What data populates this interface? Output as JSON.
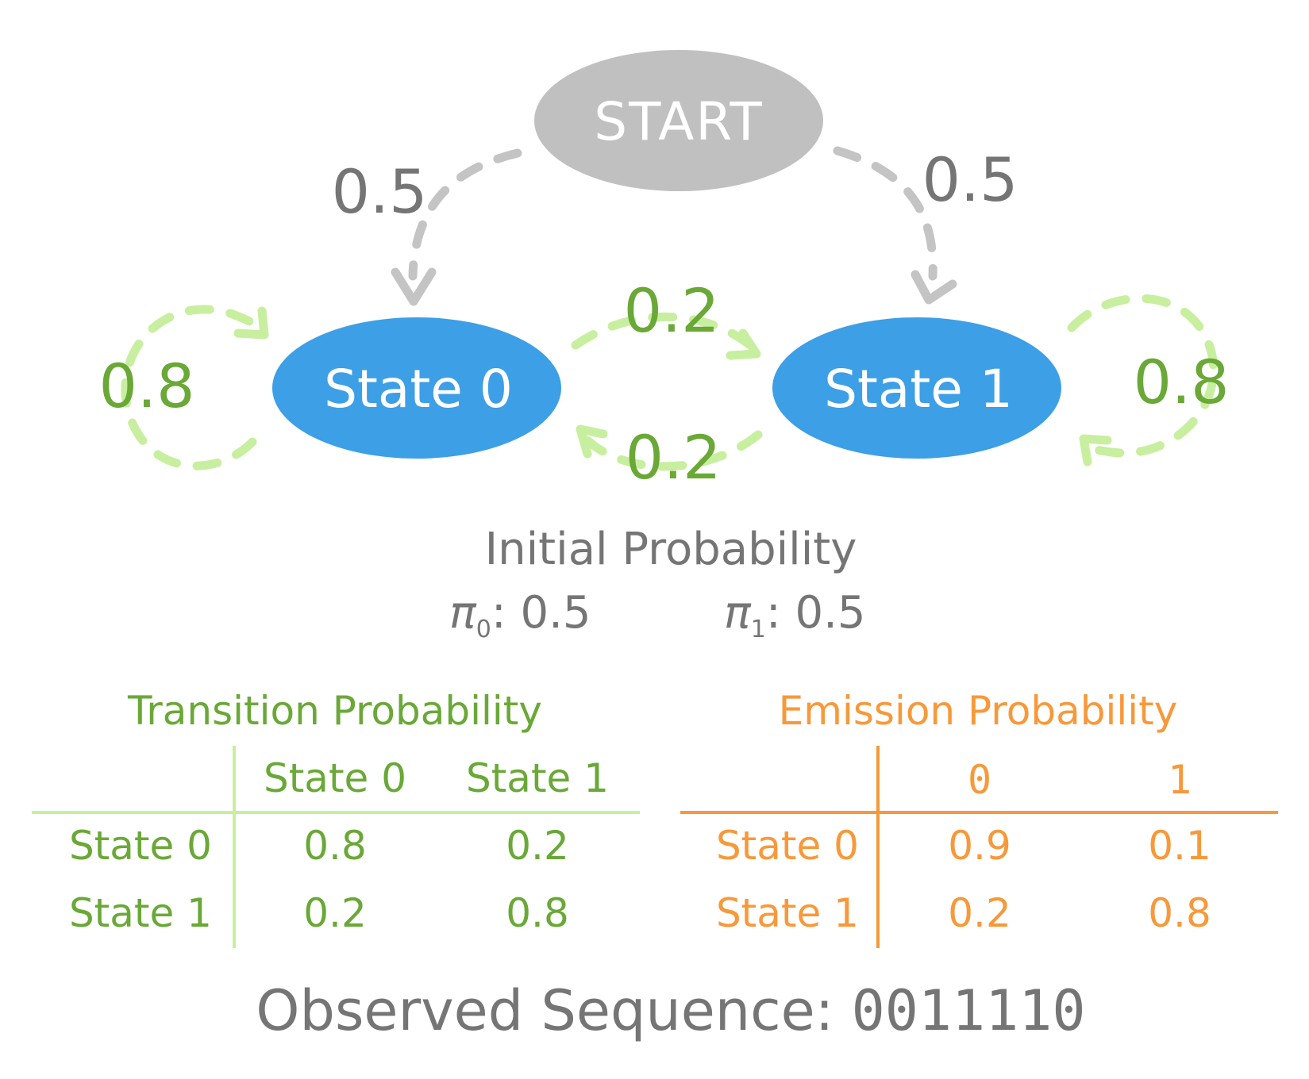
{
  "nodes": {
    "start": "START",
    "state0": "State 0",
    "state1": "State 1"
  },
  "edges": {
    "start_to_state0": "0.5",
    "start_to_state1": "0.5",
    "state0_self": "0.8",
    "state1_self": "0.8",
    "state0_to_state1": "0.2",
    "state1_to_state0": "0.2"
  },
  "initial": {
    "title": "Initial Probability",
    "pi0_symbol": "π",
    "pi0_sub": "0",
    "pi0_value": ": 0.5",
    "pi1_symbol": "π",
    "pi1_sub": "1",
    "pi1_value": ": 0.5"
  },
  "transition": {
    "title": "Transition Probability",
    "col_headers": [
      "State 0",
      "State 1"
    ],
    "rows": [
      {
        "label": "State 0",
        "values": [
          "0.8",
          "0.2"
        ]
      },
      {
        "label": "State 1",
        "values": [
          "0.2",
          "0.8"
        ]
      }
    ]
  },
  "emission": {
    "title": "Emission Probability",
    "col_headers": [
      "0",
      "1"
    ],
    "rows": [
      {
        "label": "State 0",
        "values": [
          "0.9",
          "0.1"
        ]
      },
      {
        "label": "State 1",
        "values": [
          "0.2",
          "0.8"
        ]
      }
    ]
  },
  "observed": {
    "label": "Observed Sequence: ",
    "sequence": "0011110"
  },
  "colors": {
    "start_node": "#c0c0c0",
    "state_node": "#3d9fe6",
    "gray_text": "#757575",
    "green_text": "#6aa837",
    "green_line": "#c8ef9f",
    "orange": "#f7993a",
    "gray_arrow": "#c4c4c4"
  }
}
